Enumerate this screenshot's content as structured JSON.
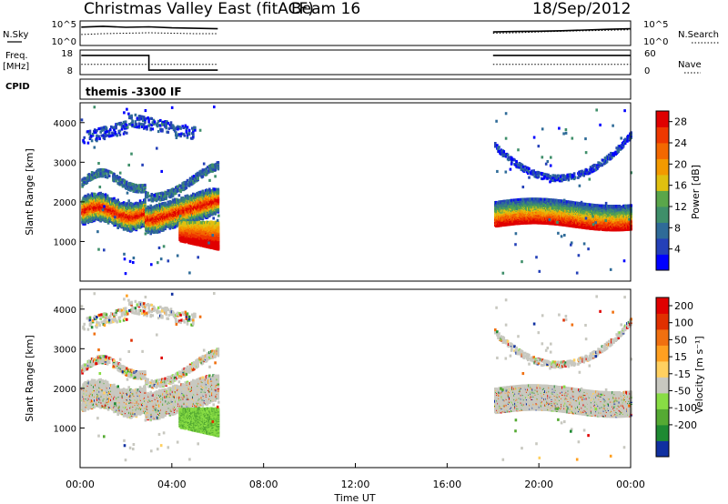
{
  "header": {
    "title": "Christmas Valley East (fitACF)",
    "beam": "Beam 16",
    "date": "18/Sep/2012"
  },
  "panel_labels": {
    "nsky": "N.Sky",
    "nsearch": "N.Search",
    "freq": "Freq.",
    "freq_unit": "[MHz]",
    "nave": "Nave",
    "cpid": "CPID",
    "cpid_value": "themis -3300 IF"
  },
  "colors": {
    "power_scale": [
      "#0000ff",
      "#2440b8",
      "#2f6b98",
      "#3f8f6a",
      "#5aa64a",
      "#e0c010",
      "#f39a00",
      "#f36800",
      "#ee3800",
      "#e00000"
    ],
    "velocity_scale": [
      "#1030a0",
      "#1e8a32",
      "#55aa33",
      "#88dd44",
      "#c8c8c0",
      "#ffd060",
      "#ffa020",
      "#f07010",
      "#e03000",
      "#e00000"
    ],
    "ground_scatter": "#c8c8c0"
  },
  "chart_data": [
    {
      "type": "line",
      "name": "nsky-nsearch",
      "xlim": [
        0,
        24
      ],
      "yticks": [
        "10^5",
        "10^0"
      ],
      "yticks_right": [
        "10^5",
        "10^0"
      ],
      "series": [
        {
          "name": "N.Sky",
          "segments": [
            [
              [
                0.05,
                0.75
              ],
              [
                1,
                0.78
              ],
              [
                2,
                0.74
              ],
              [
                3,
                0.76
              ],
              [
                4,
                0.72
              ],
              [
                5,
                0.7
              ],
              [
                6,
                0.68
              ]
            ],
            [
              [
                18,
                0.55
              ],
              [
                19,
                0.57
              ],
              [
                20,
                0.58
              ],
              [
                21,
                0.6
              ],
              [
                22,
                0.63
              ],
              [
                23,
                0.66
              ],
              [
                24,
                0.68
              ]
            ]
          ]
        },
        {
          "name": "N.Search",
          "segments": [
            [
              [
                0.05,
                0.45
              ],
              [
                1,
                0.48
              ],
              [
                2,
                0.5
              ],
              [
                3,
                0.52
              ],
              [
                4,
                0.5
              ],
              [
                5,
                0.48
              ],
              [
                6,
                0.48
              ]
            ],
            [
              [
                18,
                0.5
              ],
              [
                19,
                0.52
              ],
              [
                20,
                0.55
              ],
              [
                21,
                0.58
              ],
              [
                22,
                0.6
              ],
              [
                23,
                0.62
              ],
              [
                24,
                0.64
              ]
            ]
          ]
        }
      ]
    },
    {
      "type": "line",
      "name": "freq-nave",
      "xlim": [
        0,
        24
      ],
      "yticks": [
        "18",
        "8"
      ],
      "yticks_right": [
        "60",
        "0"
      ],
      "series": [
        {
          "name": "Freq.",
          "segments": [
            [
              [
                0.05,
                0.78
              ],
              [
                3,
                0.78
              ],
              [
                3,
                0.18
              ],
              [
                6,
                0.18
              ]
            ],
            [
              [
                18,
                0.78
              ],
              [
                24,
                0.78
              ]
            ]
          ]
        },
        {
          "name": "Nave",
          "segments": [
            [
              [
                0.05,
                0.42
              ],
              [
                6,
                0.42
              ]
            ],
            [
              [
                18,
                0.42
              ],
              [
                24,
                0.42
              ]
            ]
          ]
        }
      ]
    },
    {
      "type": "heatmap",
      "name": "power",
      "xlim": [
        0,
        24
      ],
      "ylim": [
        0,
        4500
      ],
      "ylabel": "Slant Range [km]",
      "yticks": [
        1000,
        2000,
        3000,
        4000
      ],
      "colorbar_label": "Power [dB]",
      "colorbar_ticks": [
        4,
        8,
        12,
        16,
        20,
        24,
        28
      ],
      "colorbar_range": [
        0,
        30
      ]
    },
    {
      "type": "heatmap",
      "name": "velocity",
      "xlim": [
        0,
        24
      ],
      "ylim": [
        0,
        4500
      ],
      "xlabel": "Time UT",
      "ylabel": "Slant Range [km]",
      "xticks": [
        "00:00",
        "04:00",
        "08:00",
        "12:00",
        "16:00",
        "20:00",
        "00:00"
      ],
      "yticks": [
        1000,
        2000,
        3000,
        4000
      ],
      "colorbar_label": "Velocity [m s⁻¹]",
      "colorbar_ticks": [
        "200",
        "100",
        "50",
        "15",
        "-15",
        "-50",
        "-100",
        "-200"
      ]
    }
  ]
}
